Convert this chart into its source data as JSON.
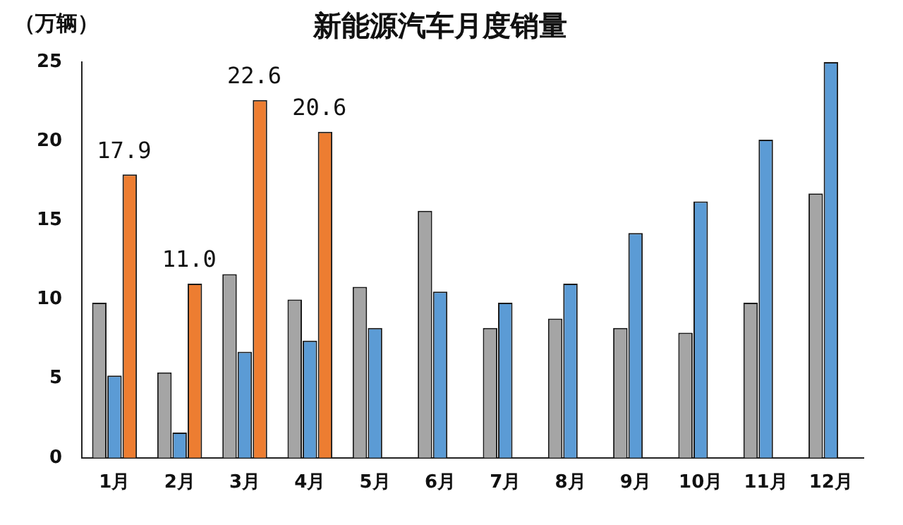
{
  "chart_data": {
    "type": "bar",
    "title": "新能源汽车月度销量",
    "ylabel": "（万辆）",
    "categories": [
      "1月",
      "2月",
      "3月",
      "4月",
      "5月",
      "6月",
      "7月",
      "8月",
      "9月",
      "10月",
      "11月",
      "12月"
    ],
    "series": [
      {
        "color": "#a5a5a5",
        "values": [
          9.8,
          5.4,
          11.6,
          10.0,
          10.8,
          15.6,
          8.2,
          8.8,
          8.2,
          7.9,
          9.8,
          16.7
        ]
      },
      {
        "color": "#5b9bd5",
        "values": [
          5.2,
          1.6,
          6.7,
          7.4,
          8.2,
          10.5,
          9.8,
          11.0,
          14.2,
          16.2,
          20.1,
          25.0
        ]
      },
      {
        "color": "#ed7d31",
        "values": [
          17.9,
          11.0,
          22.6,
          20.6,
          null,
          null,
          null,
          null,
          null,
          null,
          null,
          null
        ],
        "value_labels": [
          "17.9",
          "11.0",
          "22.6",
          "20.6",
          null,
          null,
          null,
          null,
          null,
          null,
          null,
          null
        ]
      }
    ],
    "ylim": [
      0,
      25
    ],
    "yticks": [
      0,
      5,
      10,
      15,
      20,
      25
    ],
    "grid": false,
    "legend": false
  }
}
